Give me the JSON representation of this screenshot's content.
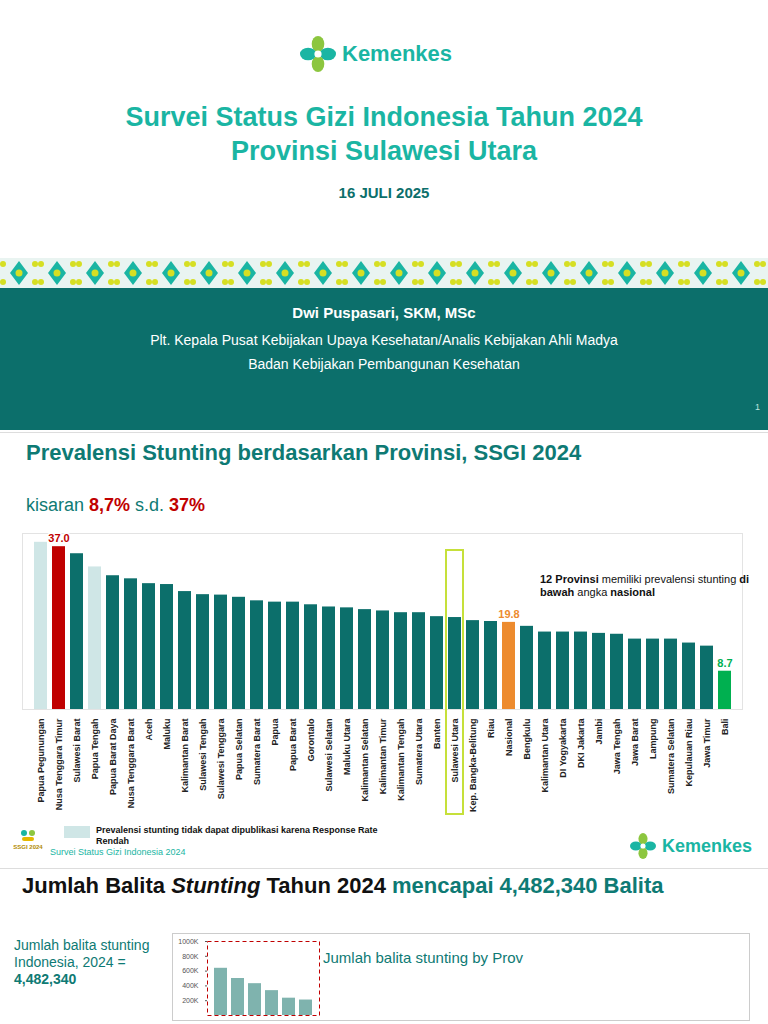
{
  "slides": {
    "header": {
      "logo": "Kemenkes",
      "title": [
        "Survei Status Gizi Indonesia Tahun 2024",
        "Provinsi Sulawesi Utara"
      ],
      "date": "16 JULI 2025",
      "presenter": "Dwi Puspasari, SKM, MSc",
      "roles": [
        "Plt. Kepala Pusat Kebijakan Upaya Kesehatan/Analis Kebijakan Ahli Madya",
        "Badan Kebijakan Pembangunan Kesehatan"
      ],
      "page": "1"
    },
    "slide2": {
      "subtitle": [
        "kisaran ",
        "8,7%",
        " s.d. ",
        "37%"
      ],
      "annotation": [
        "12 Provinsi",
        " memiliki prevalensi stunting ",
        "di bawah",
        " angka ",
        "nasional"
      ],
      "legend_note": "Prevalensi stunting tidak dapat dipublikasi karena Response Rate Rendah",
      "footer": "Survei Status Gizi Indonesia 2024",
      "ssgi_logo": "SSGI 2024",
      "logo": "Kemenkes"
    },
    "slide3": {
      "title": [
        "Jumlah Balita ",
        "Stunting",
        " Tahun 2024 ",
        "mencapai 4,482,340 Balita"
      ],
      "summary": [
        "Jumlah balita stunting Indonesia, 2024 = ",
        "4,482,340"
      ]
    }
  },
  "chart_data": [
    {
      "type": "bar",
      "title": "Prevalensi Stunting berdasarkan Provinsi, SSGI 2024",
      "categories": [
        "Papua Pegunungan",
        "Nusa Tenggara Timur",
        "Sulawesi Barat",
        "Papua Tengah",
        "Papua Barat Daya",
        "Nusa Tenggara Barat",
        "Aceh",
        "Maluku",
        "Kalimantan Barat",
        "Sulawesi Tengah",
        "Sulawesi Tenggara",
        "Papua Selatan",
        "Sumatera Barat",
        "Papua",
        "Papua Barat",
        "Gorontalo",
        "Sulawesi Selatan",
        "Maluku Utara",
        "Kalimantan Selatan",
        "Kalimantan Timur",
        "Kalimantan Tengah",
        "Sumatera Utara",
        "Banten",
        "Sulawesi Utara",
        "Kep. Bangka-Belitung",
        "Riau",
        "Nasional",
        "Bengkulu",
        "Kalimantan Utara",
        "DI Yogyakarta",
        "DKI Jakarta",
        "Jambi",
        "Jawa Tengah",
        "Jawa Barat",
        "Lampung",
        "Sumatera Selatan",
        "Kepulauan Riau",
        "Jawa Timur",
        "Bali"
      ],
      "values": [
        38.0,
        37.0,
        35.4,
        32.4,
        30.4,
        29.7,
        28.6,
        28.4,
        26.8,
        26.1,
        26.0,
        25.5,
        24.7,
        24.4,
        24.4,
        23.8,
        23.3,
        23.1,
        22.7,
        22.4,
        22.0,
        22.0,
        21.1,
        20.9,
        20.2,
        20.0,
        19.8,
        18.9,
        17.6,
        17.6,
        17.6,
        17.3,
        17.1,
        16.0,
        16.0,
        16.0,
        15.1,
        14.4,
        8.7
      ],
      "value_labels": [
        null,
        "37.0",
        null,
        null,
        null,
        null,
        null,
        null,
        null,
        null,
        null,
        null,
        null,
        null,
        null,
        null,
        null,
        null,
        null,
        null,
        null,
        null,
        null,
        null,
        null,
        null,
        "19.8",
        null,
        null,
        null,
        null,
        null,
        null,
        null,
        null,
        null,
        null,
        null,
        "8.7"
      ],
      "colors": [
        "#cfe6e6",
        "#c00000",
        "#0c6f6b",
        "#cfe6e6",
        "#0c6f6b",
        "#0c6f6b",
        "#0c6f6b",
        "#0c6f6b",
        "#0c6f6b",
        "#0c6f6b",
        "#0c6f6b",
        "#0c6f6b",
        "#0c6f6b",
        "#0c6f6b",
        "#0c6f6b",
        "#0c6f6b",
        "#0c6f6b",
        "#0c6f6b",
        "#0c6f6b",
        "#0c6f6b",
        "#0c6f6b",
        "#0c6f6b",
        "#0c6f6b",
        "#0c6f6b",
        "#0c6f6b",
        "#0c6f6b",
        "#ed8b2e",
        "#0c6f6b",
        "#0c6f6b",
        "#0c6f6b",
        "#0c6f6b",
        "#0c6f6b",
        "#0c6f6b",
        "#0c6f6b",
        "#0c6f6b",
        "#0c6f6b",
        "#0c6f6b",
        "#0c6f6b",
        "#00b050"
      ],
      "ylim": [
        0,
        40
      ],
      "yticks": [],
      "tick_labels": "x",
      "grid": false,
      "data_labels": true
    },
    {
      "type": "bar",
      "title": "Jumlah balita stunting by Prov",
      "categories": [
        null,
        null,
        null,
        null,
        null,
        null
      ],
      "values": [
        638000,
        500000,
        430000,
        336000,
        234000,
        209000
      ],
      "color": "#7fb3ae",
      "ylim": [
        0,
        1000000
      ],
      "yticks": [
        {
          "value": 200000,
          "label": "200K"
        },
        {
          "value": 400000,
          "label": "400K"
        },
        {
          "value": 600000,
          "label": "600K"
        },
        {
          "value": 800000,
          "label": "800K"
        },
        {
          "value": 1000000,
          "label": "1000K"
        }
      ],
      "tick_labels": "y",
      "grid": false,
      "data_labels": false
    }
  ]
}
